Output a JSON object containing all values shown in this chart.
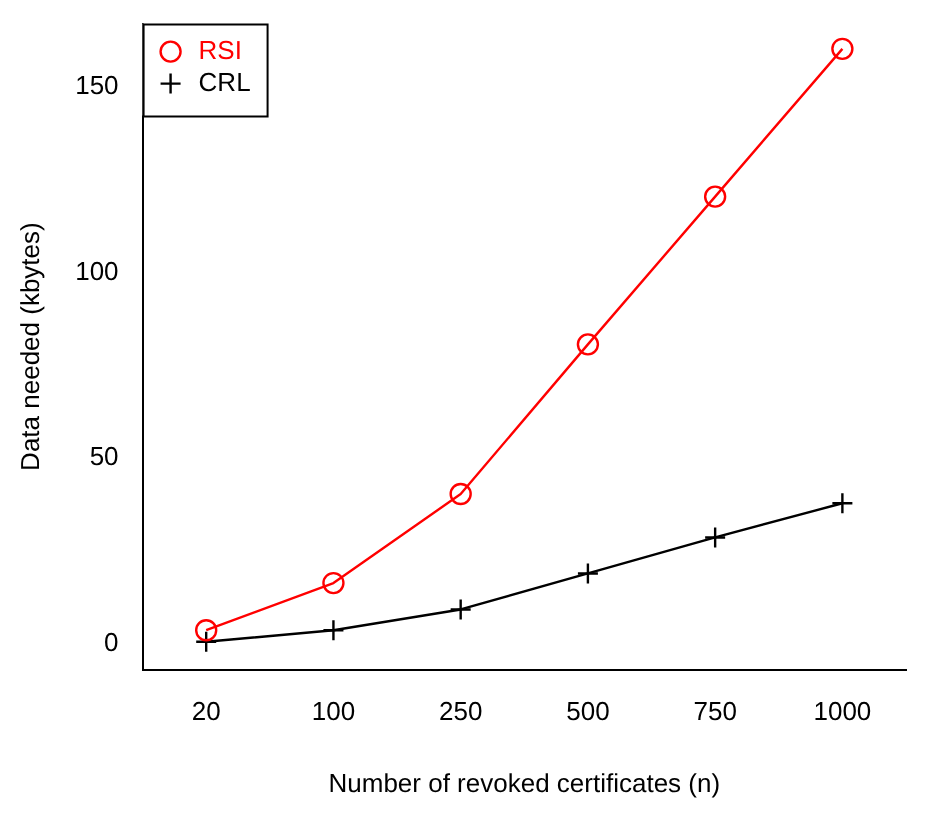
{
  "chart_data": {
    "type": "line",
    "xlabel": "Number of revoked certificates (n)",
    "ylabel": "Data needed (kbytes)",
    "categories": [
      "20",
      "100",
      "250",
      "500",
      "750",
      "1000"
    ],
    "series": [
      {
        "name": "RSI",
        "color": "#ff0000",
        "marker": "circle",
        "values": [
          3.6,
          16.3,
          40.3,
          80.6,
          120.4,
          160.2
        ]
      },
      {
        "name": "CRL",
        "color": "#000000",
        "marker": "cross",
        "values": [
          0.5,
          3.6,
          9.2,
          18.9,
          28.6,
          37.8
        ]
      }
    ],
    "ylim": [
      -7,
      167
    ],
    "yticks": [
      0,
      50,
      100,
      150
    ],
    "grid": false,
    "legend": "top left"
  }
}
